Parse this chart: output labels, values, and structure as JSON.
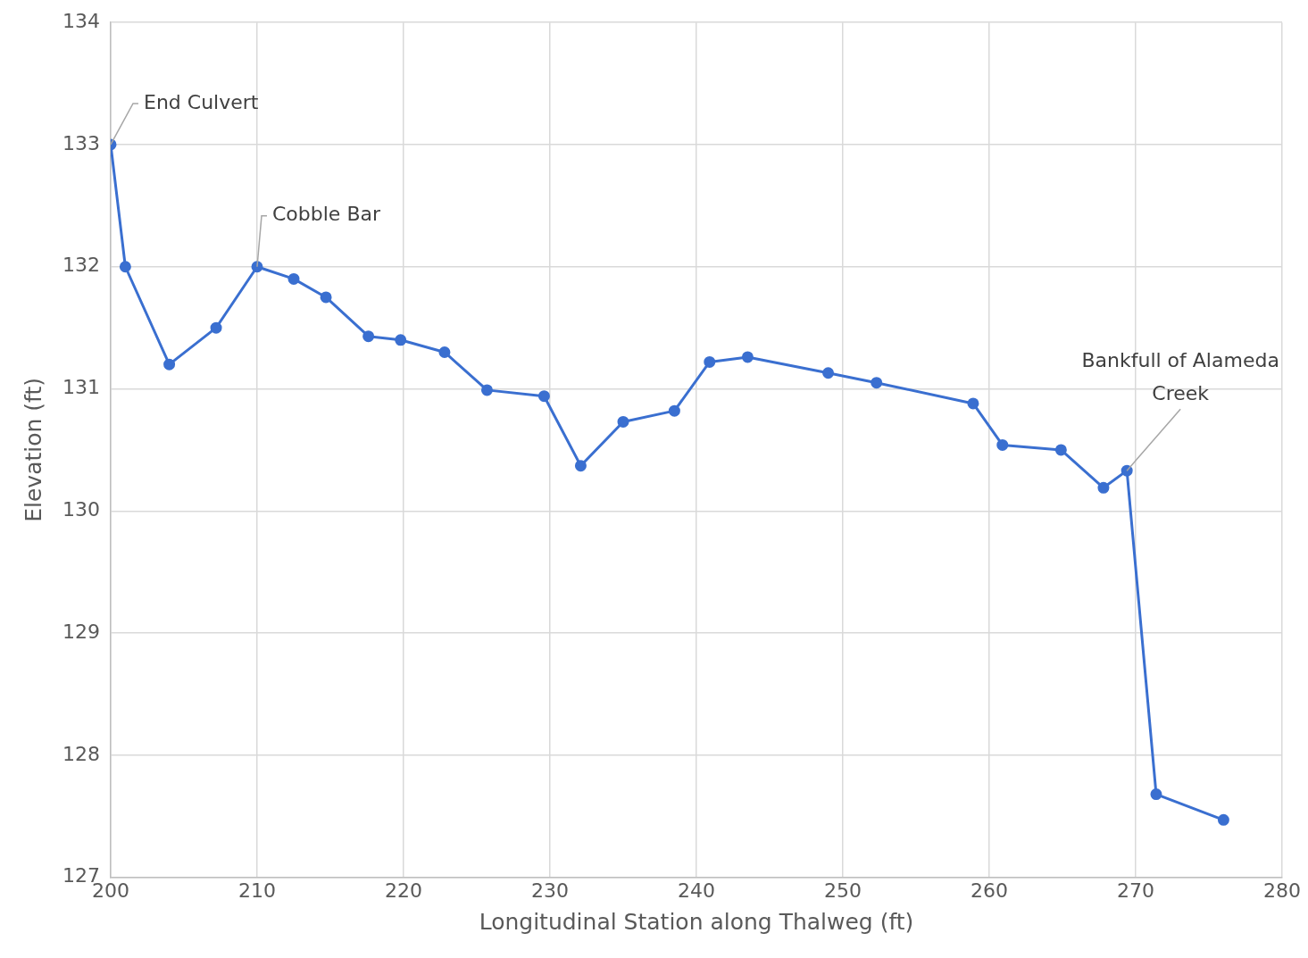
{
  "chart_data": {
    "type": "line",
    "xlabel": "Longitudinal Station along Thalweg (ft)",
    "ylabel": "Elevation (ft)",
    "x": [
      200,
      201,
      204,
      207.2,
      210,
      212.5,
      214.7,
      217.6,
      219.8,
      222.8,
      225.7,
      229.6,
      232.1,
      235,
      238.5,
      240.9,
      243.5,
      249,
      252.3,
      258.9,
      260.9,
      264.9,
      267.8,
      269.4,
      271.4,
      276
    ],
    "series": [
      {
        "color": "#3a6fd0",
        "values": [
          133,
          132,
          131.2,
          131.5,
          132,
          131.9,
          131.75,
          131.43,
          131.4,
          131.3,
          130.99,
          130.94,
          130.37,
          130.73,
          130.82,
          131.22,
          131.26,
          131.13,
          131.05,
          130.88,
          130.54,
          130.5,
          130.19,
          130.33,
          127.68,
          127.47
        ]
      }
    ],
    "xlim": [
      200,
      280
    ],
    "xticks": [
      200,
      210,
      220,
      230,
      240,
      250,
      260,
      270,
      280
    ],
    "ylim": [
      127,
      134
    ],
    "yticks": [
      127,
      128,
      129,
      130,
      131,
      132,
      133,
      134
    ],
    "grid": true,
    "marker": "circle",
    "line_style": "solid",
    "legend": false,
    "annotations": [
      {
        "text": "End Culvert",
        "x": 200,
        "y": 133
      },
      {
        "text": "Cobble Bar",
        "x": 210,
        "y": 132
      },
      {
        "text": "Bankfull of Alameda Creek",
        "x": 269.4,
        "y": 130.33
      }
    ]
  }
}
